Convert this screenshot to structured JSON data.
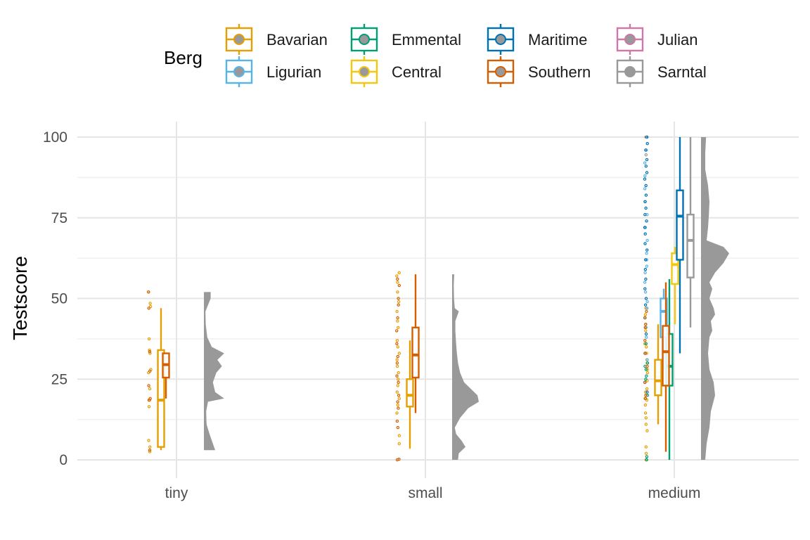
{
  "chart_data": {
    "type": "boxplot",
    "title": "",
    "xlabel": "",
    "ylabel": "Testscore",
    "ylim": [
      0,
      100
    ],
    "yticks": [
      0,
      25,
      50,
      75,
      100
    ],
    "categories": [
      "tiny",
      "small",
      "medium"
    ],
    "grid": true,
    "legend": {
      "title": "Berg",
      "placement": "top",
      "entries": [
        {
          "name": "Bavarian",
          "color": "#E69F00"
        },
        {
          "name": "Ligurian",
          "color": "#56B4E9"
        },
        {
          "name": "Emmental",
          "color": "#009E73"
        },
        {
          "name": "Central",
          "color": "#F5C710"
        },
        {
          "name": "Maritime",
          "color": "#0072B2"
        },
        {
          "name": "Southern",
          "color": "#D55E00"
        },
        {
          "name": "Julian",
          "color": "#CC79A7"
        },
        {
          "name": "Sarntal",
          "color": "#999999"
        }
      ]
    },
    "density_color": "#999999",
    "groups": [
      {
        "category": "tiny",
        "boxes": [
          {
            "series": "Bavarian",
            "min": 3,
            "q1": 4,
            "median": 18.5,
            "q3": 34,
            "max": 47
          },
          {
            "series": "Southern",
            "min": 19,
            "q1": 25.5,
            "median": 29.5,
            "q3": 33,
            "max": 33
          }
        ],
        "points": [
          {
            "series": "Bavarian",
            "values": [
              2.5,
              4,
              6,
              16.5,
              18.5,
              22,
              27,
              28,
              33,
              34,
              37.5,
              47.5,
              48.5,
              52
            ]
          },
          {
            "series": "Southern",
            "values": [
              3,
              18.5,
              19,
              23,
              27.5,
              33.5,
              47,
              52
            ]
          }
        ],
        "density": {
          "ymin": 3,
          "ymax": 52,
          "profile": [
            [
              3,
              0.5
            ],
            [
              5,
              0.4
            ],
            [
              8,
              0.25
            ],
            [
              11,
              0.12
            ],
            [
              15,
              0.1
            ],
            [
              18,
              0.18
            ],
            [
              19,
              0.9
            ],
            [
              21,
              0.5
            ],
            [
              24,
              0.4
            ],
            [
              27,
              0.55
            ],
            [
              29,
              0.8
            ],
            [
              31,
              0.6
            ],
            [
              33,
              0.9
            ],
            [
              35,
              0.35
            ],
            [
              38,
              0.15
            ],
            [
              42,
              0.08
            ],
            [
              46,
              0.07
            ],
            [
              50,
              0.3
            ],
            [
              52,
              0.3
            ]
          ]
        }
      },
      {
        "category": "small",
        "boxes": [
          {
            "series": "Bavarian",
            "min": 3.5,
            "q1": 16.5,
            "median": 20,
            "q3": 25,
            "max": 37
          },
          {
            "series": "Southern",
            "min": 14.5,
            "q1": 25.5,
            "median": 32.5,
            "q3": 41,
            "max": 57.5
          }
        ],
        "points": [
          {
            "series": "Bavarian",
            "values": [
              5,
              7.5,
              14.5,
              17,
              19,
              21,
              23,
              25,
              27,
              29,
              31,
              33,
              35,
              37,
              41,
              43,
              46,
              49,
              52,
              55,
              57,
              58
            ]
          },
          {
            "series": "Southern",
            "values": [
              0,
              0.2,
              10,
              12,
              16,
              18,
              20,
              24,
              26,
              30,
              32,
              36,
              40,
              44,
              48,
              50,
              54,
              56
            ]
          }
        ],
        "density": {
          "ymin": 0,
          "ymax": 57.5,
          "profile": [
            [
              0,
              0.22
            ],
            [
              2,
              0.25
            ],
            [
              4,
              0.5
            ],
            [
              6,
              0.35
            ],
            [
              8,
              0.15
            ],
            [
              10,
              0.1
            ],
            [
              13,
              0.3
            ],
            [
              16,
              0.6
            ],
            [
              18,
              1.0
            ],
            [
              20,
              0.95
            ],
            [
              22,
              0.7
            ],
            [
              24,
              0.45
            ],
            [
              27,
              0.3
            ],
            [
              30,
              0.22
            ],
            [
              33,
              0.18
            ],
            [
              36,
              0.15
            ],
            [
              40,
              0.12
            ],
            [
              43,
              0.12
            ],
            [
              46,
              0.25
            ],
            [
              47,
              0.1
            ],
            [
              50,
              0.07
            ],
            [
              54,
              0.06
            ],
            [
              57.5,
              0.08
            ]
          ]
        }
      },
      {
        "category": "medium",
        "boxes": [
          {
            "series": "Bavarian",
            "min": 11,
            "q1": 20,
            "median": 24.5,
            "q3": 31,
            "max": 42
          },
          {
            "series": "Emmental",
            "min": 0,
            "q1": 23,
            "median": 29,
            "q3": 39,
            "max": 56
          },
          {
            "series": "Ligurian",
            "min": 28,
            "q1": 38,
            "median": 46,
            "q3": 50,
            "max": 53
          },
          {
            "series": "Central",
            "min": 42,
            "q1": 54.5,
            "median": 60.5,
            "q3": 64,
            "max": 66
          },
          {
            "series": "Southern",
            "min": 2.5,
            "q1": 23,
            "median": 33.5,
            "q3": 41.5,
            "max": 55
          },
          {
            "series": "Maritime",
            "min": 33,
            "q1": 62,
            "median": 75.5,
            "q3": 83.5,
            "max": 100
          },
          {
            "series": "Sarntal",
            "min": 41,
            "q1": 56.5,
            "median": 68,
            "q3": 76,
            "max": 100
          }
        ],
        "points": [
          {
            "series": "Bavarian",
            "values": [
              0,
              2,
              4,
              9,
              11,
              13,
              14.5,
              17,
              18.5,
              19,
              21,
              22,
              24.5,
              27,
              28,
              30,
              31,
              33,
              35,
              36,
              40,
              42,
              45,
              47
            ]
          },
          {
            "series": "Emmental",
            "values": [
              0,
              1,
              19,
              20,
              24,
              25,
              26,
              28,
              29,
              30,
              36
            ]
          },
          {
            "series": "Ligurian",
            "values": [
              31,
              38,
              41,
              44,
              47,
              49,
              52,
              55,
              58,
              60,
              62,
              64,
              68,
              72,
              76,
              80,
              84,
              88,
              92,
              96,
              100
            ]
          },
          {
            "series": "Maritime",
            "values": [
              21,
              33,
              39,
              44,
              48,
              50,
              53,
              56,
              59,
              62,
              65,
              67,
              70,
              72,
              74,
              76,
              78,
              80,
              82,
              85,
              87,
              89,
              91,
              93,
              96,
              98,
              100,
              100
            ]
          },
          {
            "series": "Southern",
            "values": [
              19,
              20,
              24,
              29,
              33,
              37,
              41,
              42,
              44,
              46
            ]
          },
          {
            "series": "Sarntal",
            "values": [
              94.5,
              100
            ]
          }
        ],
        "density": {
          "ymin": 0,
          "ymax": 100,
          "profile": [
            [
              0,
              0.15
            ],
            [
              5,
              0.2
            ],
            [
              10,
              0.3
            ],
            [
              15,
              0.35
            ],
            [
              20,
              0.5
            ],
            [
              24,
              0.45
            ],
            [
              28,
              0.3
            ],
            [
              33,
              0.25
            ],
            [
              38,
              0.3
            ],
            [
              40,
              0.4
            ],
            [
              43,
              0.35
            ],
            [
              45,
              0.5
            ],
            [
              47,
              0.45
            ],
            [
              50,
              0.3
            ],
            [
              53,
              0.4
            ],
            [
              55,
              0.3
            ],
            [
              58,
              0.5
            ],
            [
              61,
              0.8
            ],
            [
              64,
              1.0
            ],
            [
              66,
              0.8
            ],
            [
              68,
              0.2
            ],
            [
              72,
              0.25
            ],
            [
              76,
              0.28
            ],
            [
              80,
              0.3
            ],
            [
              85,
              0.25
            ],
            [
              90,
              0.15
            ],
            [
              95,
              0.15
            ],
            [
              100,
              0.18
            ]
          ]
        }
      }
    ]
  }
}
